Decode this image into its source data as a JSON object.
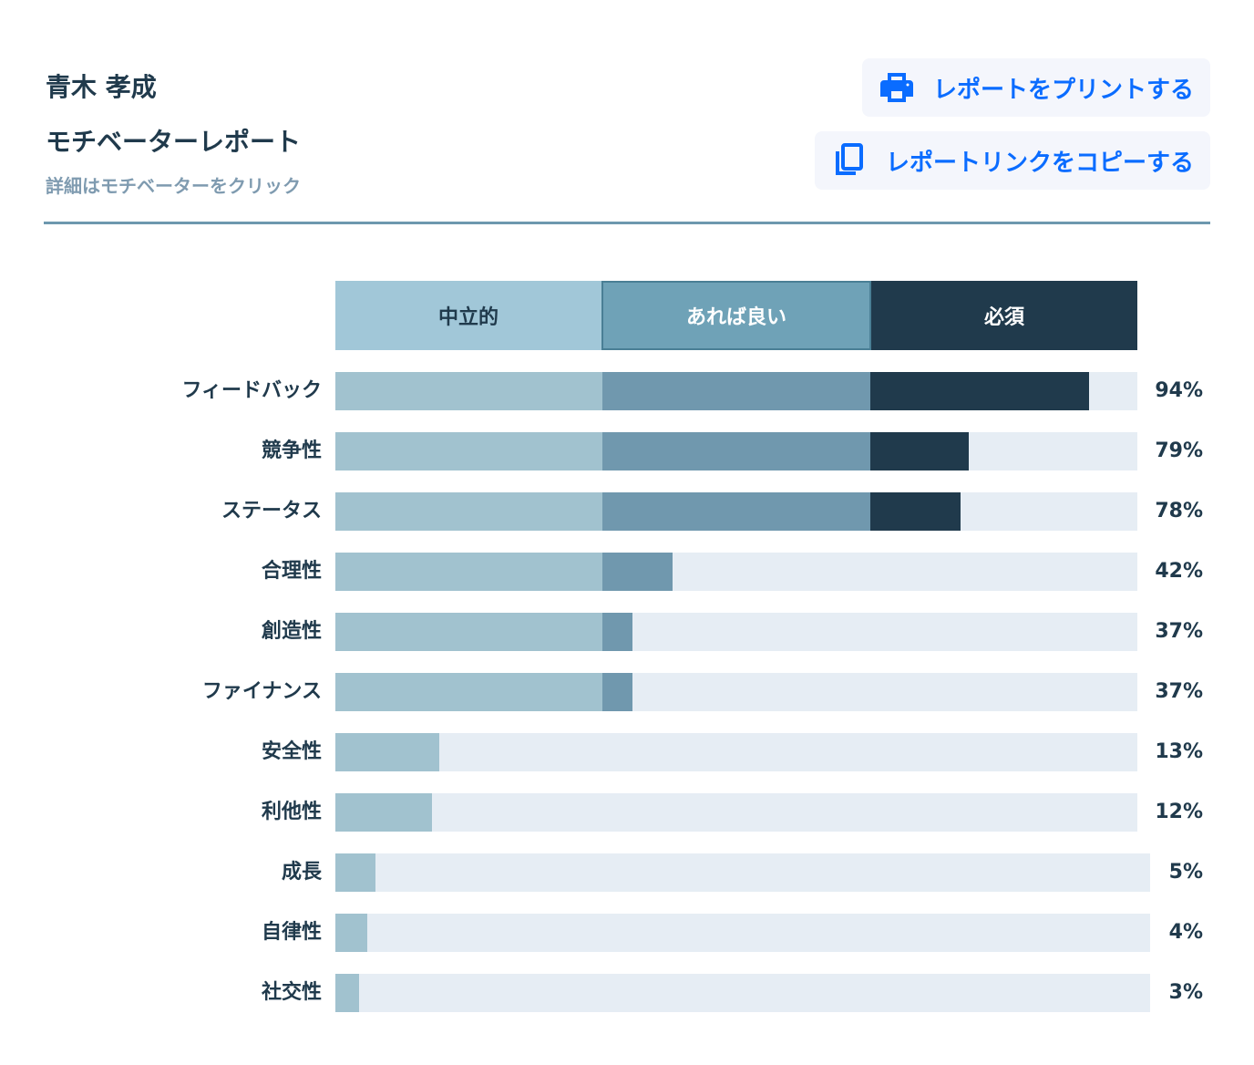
{
  "header": {
    "name": "青木 孝成",
    "title": "モチベーターレポート",
    "subtitle": "詳細はモチベーターをクリック"
  },
  "buttons": {
    "print": "レポートをプリントする",
    "copy": "レポートリンクをコピーする"
  },
  "colors": {
    "neutral": "#a1c2cf",
    "nice": "#7098ae",
    "must": "#203a4c",
    "track": "#e6edf4",
    "accent": "#0a6cff"
  },
  "chart_data": {
    "type": "bar",
    "stacked": true,
    "legend": [
      "中立的",
      "あれば良い",
      "必須"
    ],
    "categories": [
      "フィードバック",
      "競争性",
      "ステータス",
      "合理性",
      "創造性",
      "ファイナンス",
      "安全性",
      "利他性",
      "成長",
      "自律性",
      "社交性"
    ],
    "values": [
      94,
      79,
      78,
      42,
      37,
      37,
      13,
      12,
      5,
      4,
      3
    ],
    "labels": [
      "94%",
      "79%",
      "78%",
      "42%",
      "37%",
      "37%",
      "13%",
      "12%",
      "5%",
      "4%",
      "3%"
    ],
    "ylim": [
      0,
      100
    ]
  }
}
